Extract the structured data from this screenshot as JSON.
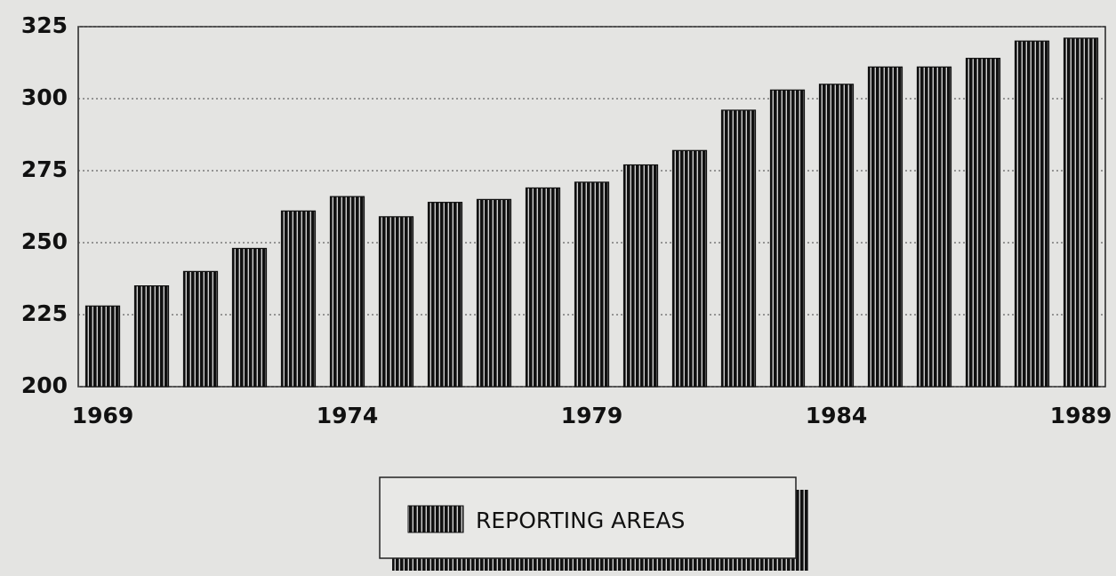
{
  "chart_data": {
    "type": "bar",
    "categories": [
      "1969",
      null,
      null,
      null,
      null,
      "1974",
      null,
      null,
      null,
      null,
      "1979",
      null,
      null,
      null,
      null,
      "1984",
      null,
      null,
      null,
      null,
      "1989"
    ],
    "series": [
      {
        "name": "REPORTING AREAS",
        "color": "#111111",
        "values": [
          228,
          235,
          240,
          248,
          261,
          266,
          259,
          264,
          265,
          269,
          271,
          277,
          282,
          296,
          303,
          305,
          311,
          311,
          314,
          320,
          321
        ]
      }
    ],
    "ylim": [
      200,
      325
    ],
    "yticks": [
      200,
      225,
      250,
      275,
      300,
      325
    ],
    "grid": true,
    "legend": "bottom"
  }
}
